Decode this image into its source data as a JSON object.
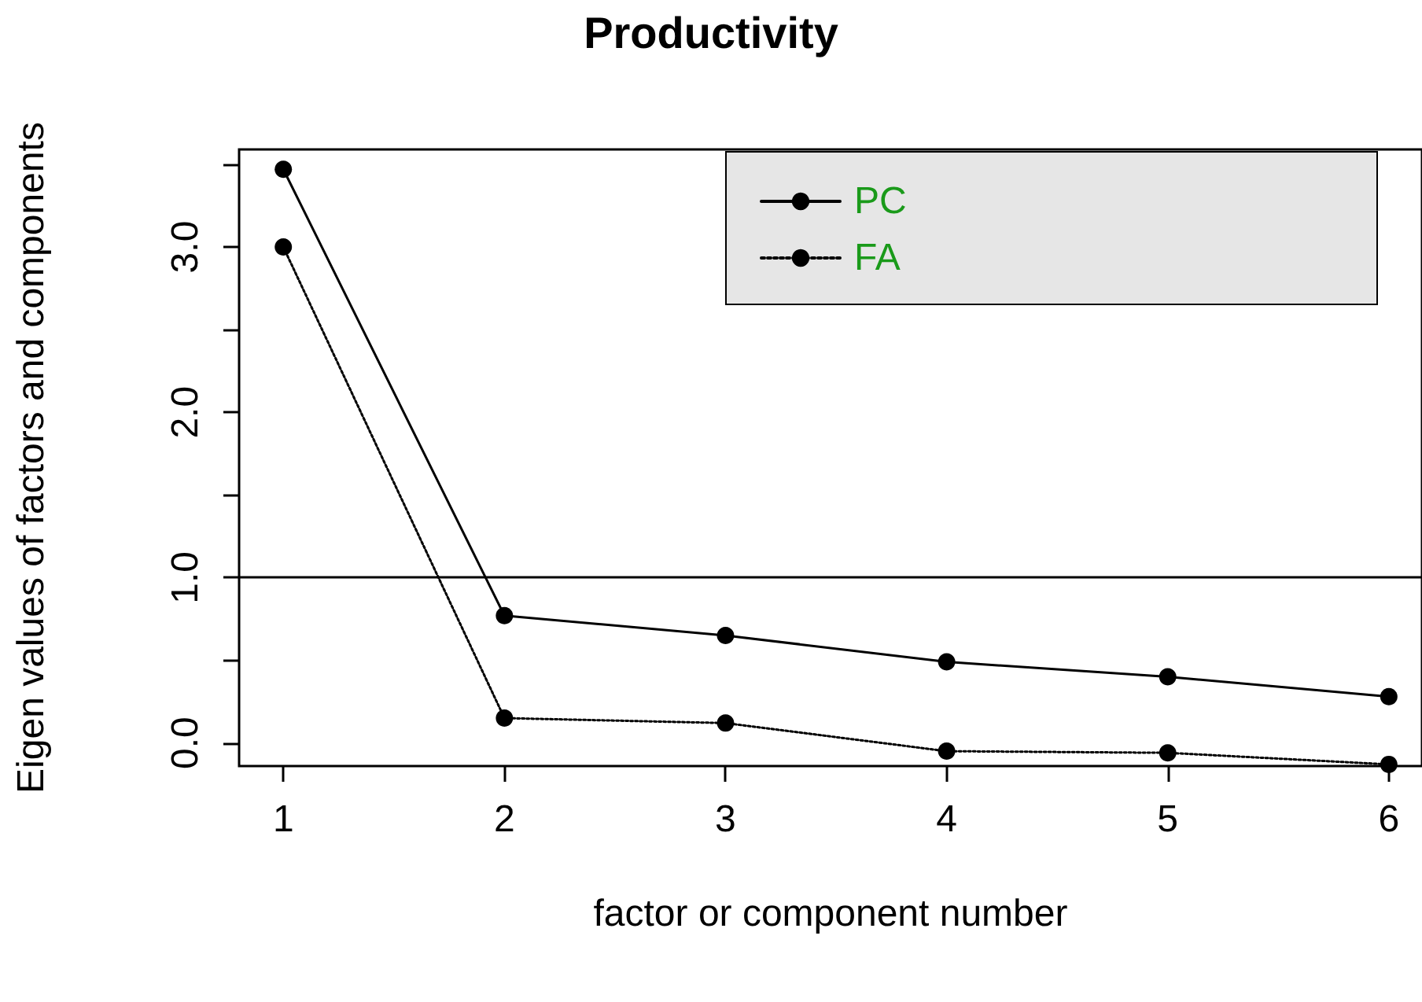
{
  "chart_data": {
    "type": "line",
    "title": "Productivity",
    "xlabel": "factor or component number",
    "ylabel": "Eigen values of factors and components",
    "x": [
      1,
      2,
      3,
      4,
      5,
      6
    ],
    "series": [
      {
        "name": "PC",
        "color": "#000000",
        "values": [
          3.47,
          0.77,
          0.65,
          0.49,
          0.4,
          0.28
        ],
        "marker": "circle",
        "line_style": "solid"
      },
      {
        "name": "FA",
        "color": "#000000",
        "values": [
          3.0,
          0.15,
          0.12,
          -0.05,
          -0.06,
          -0.13
        ],
        "marker": "circle",
        "line_style": "dotted"
      }
    ],
    "xlim": [
      0.8,
      6.15
    ],
    "xticks": [
      1,
      2,
      3,
      4,
      5,
      6
    ],
    "ylim": [
      -0.14,
      3.59
    ],
    "yticks": [
      {
        "value": 0,
        "label": "0.0"
      },
      {
        "value": 0.5,
        "label": null
      },
      {
        "value": 1,
        "label": "1.0"
      },
      {
        "value": 1.5,
        "label": null
      },
      {
        "value": 2,
        "label": "2.0"
      },
      {
        "value": 2.5,
        "label": null
      },
      {
        "value": 3,
        "label": "3.0"
      },
      {
        "value": 3.5,
        "label": null
      }
    ],
    "ref_lines": [
      {
        "axis": "y",
        "value": 1,
        "color": "#000000",
        "line_style": "solid"
      }
    ],
    "grid": false,
    "legend": "top right"
  }
}
